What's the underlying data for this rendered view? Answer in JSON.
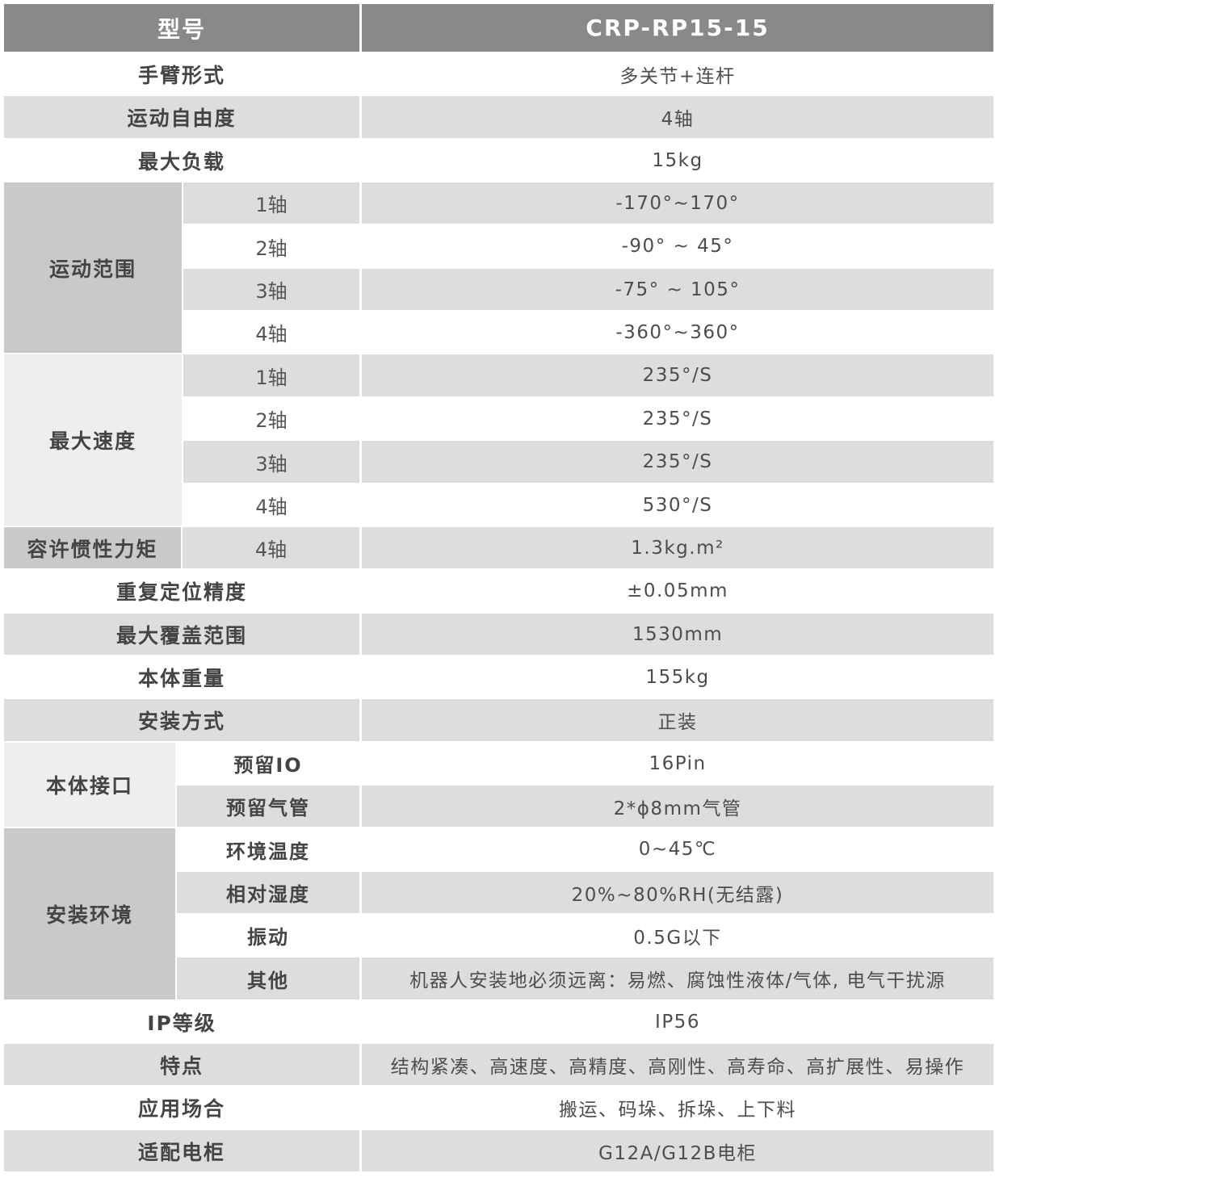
{
  "header": {
    "model_label": "型号",
    "model_value": "CRP-RP15-15"
  },
  "colors": {
    "header": "#898989",
    "stripe": "#dcdddd",
    "group_dark": "#c8c9ca",
    "group_light": "#eeeeee"
  },
  "rows": [
    {
      "label": "手臂形式",
      "value": "多关节+连杆"
    },
    {
      "label": "运动自由度",
      "value": "4轴"
    },
    {
      "label": "最大负载",
      "value": "15kg"
    },
    {
      "group": 0,
      "sub": "1轴",
      "value": "-170°~170°"
    },
    {
      "group": 0,
      "sub": "2轴",
      "value": "-90° ~ 45°"
    },
    {
      "group": 0,
      "sub": "3轴",
      "value": "-75° ~ 105°"
    },
    {
      "group": 0,
      "sub": "4轴",
      "value": "-360°~360°"
    },
    {
      "group": 1,
      "sub": "1轴",
      "value": "235°/S"
    },
    {
      "group": 1,
      "sub": "2轴",
      "value": "235°/S"
    },
    {
      "group": 1,
      "sub": "3轴",
      "value": "235°/S"
    },
    {
      "group": 1,
      "sub": "4轴",
      "value": "530°/S"
    },
    {
      "group": 2,
      "sub": "4轴",
      "value": "1.3kg.m²"
    },
    {
      "label": "重复定位精度",
      "value": "±0.05mm"
    },
    {
      "label": "最大覆盖范围",
      "value": "1530mm"
    },
    {
      "label": "本体重量",
      "value": "155kg"
    },
    {
      "label": "安装方式",
      "value": "正装"
    },
    {
      "group": 3,
      "sub": "预留IO",
      "value": "16Pin"
    },
    {
      "group": 3,
      "sub": "预留气管",
      "value": "2*ϕ8mm气管"
    },
    {
      "group": 4,
      "sub": "环境温度",
      "value": "0~45℃"
    },
    {
      "group": 4,
      "sub": "相对湿度",
      "value": "20%~80%RH(无结露)"
    },
    {
      "group": 4,
      "sub": "振动",
      "value": "0.5G以下"
    },
    {
      "group": 4,
      "sub": "其他",
      "value": "机器人安装地必须远离：易燃、腐蚀性液体/气体, 电气干扰源"
    },
    {
      "label": "IP等级",
      "value": "IP56"
    },
    {
      "label": "特点",
      "value": "结构紧凑、高速度、高精度、高刚性、高寿命、高扩展性、易操作"
    },
    {
      "label": "应用场合",
      "value": "搬运、码垛、拆垛、上下料"
    },
    {
      "label": "适配电柜",
      "value": "G12A/G12B电柜"
    }
  ],
  "groups": [
    {
      "label": "运动范围",
      "tone": "dark"
    },
    {
      "label": "最大速度",
      "tone": "light"
    },
    {
      "label": "容许惯性力矩",
      "tone": "dark"
    },
    {
      "label": "本体接口",
      "tone": "light"
    },
    {
      "label": "安装环境",
      "tone": "dark"
    }
  ]
}
